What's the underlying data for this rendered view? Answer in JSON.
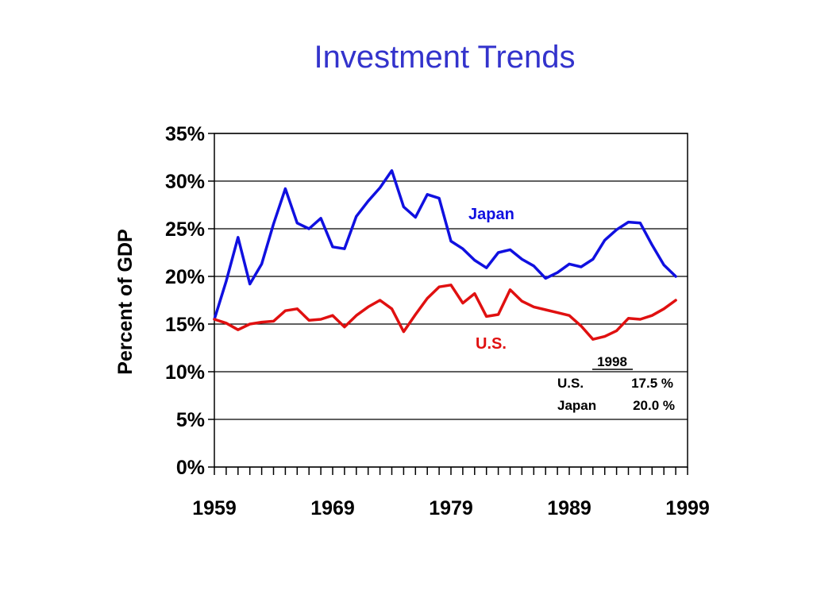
{
  "title": "Investment Trends",
  "chart_data": {
    "type": "line",
    "title": "Investment Trends",
    "xlabel": "",
    "ylabel": "Percent of GDP",
    "xlim": [
      1959,
      1999
    ],
    "ylim": [
      0,
      35
    ],
    "x_ticks": [
      "1959",
      "1969",
      "1979",
      "1989",
      "1999"
    ],
    "y_ticks": [
      "0%",
      "5%",
      "10%",
      "15%",
      "20%",
      "25%",
      "30%",
      "35%"
    ],
    "grid": "horizontal",
    "x": [
      1959,
      1960,
      1961,
      1962,
      1963,
      1964,
      1965,
      1966,
      1967,
      1968,
      1969,
      1970,
      1971,
      1972,
      1973,
      1974,
      1975,
      1976,
      1977,
      1978,
      1979,
      1980,
      1981,
      1982,
      1983,
      1984,
      1985,
      1986,
      1987,
      1988,
      1989,
      1990,
      1991,
      1992,
      1993,
      1994,
      1995,
      1996,
      1997,
      1998
    ],
    "series": [
      {
        "name": "Japan",
        "color": "#1010e0",
        "values": [
          15.5,
          19.5,
          24.1,
          19.2,
          21.3,
          25.5,
          29.2,
          25.6,
          25.0,
          26.1,
          23.1,
          22.9,
          26.3,
          27.9,
          29.3,
          31.1,
          27.3,
          26.2,
          28.6,
          28.2,
          23.7,
          22.9,
          21.7,
          20.9,
          22.5,
          22.8,
          21.8,
          21.1,
          19.8,
          20.4,
          21.3,
          21.0,
          21.8,
          23.8,
          24.9,
          25.7,
          25.6,
          23.3,
          21.2,
          20.0
        ]
      },
      {
        "name": "U.S.",
        "color": "#e01010",
        "values": [
          15.5,
          15.1,
          14.4,
          15.0,
          15.2,
          15.3,
          16.4,
          16.6,
          15.4,
          15.5,
          15.9,
          14.7,
          15.9,
          16.8,
          17.5,
          16.6,
          14.2,
          16.0,
          17.7,
          18.9,
          19.1,
          17.2,
          18.2,
          15.8,
          16.0,
          18.6,
          17.4,
          16.8,
          16.5,
          16.2,
          15.9,
          14.8,
          13.4,
          13.7,
          14.3,
          15.6,
          15.5,
          15.9,
          16.6,
          17.5
        ]
      }
    ],
    "annotation": {
      "heading": "1998",
      "rows": [
        {
          "label": "U.S.",
          "value": "17.5 %"
        },
        {
          "label": "Japan",
          "value": "20.0 %"
        }
      ]
    }
  }
}
